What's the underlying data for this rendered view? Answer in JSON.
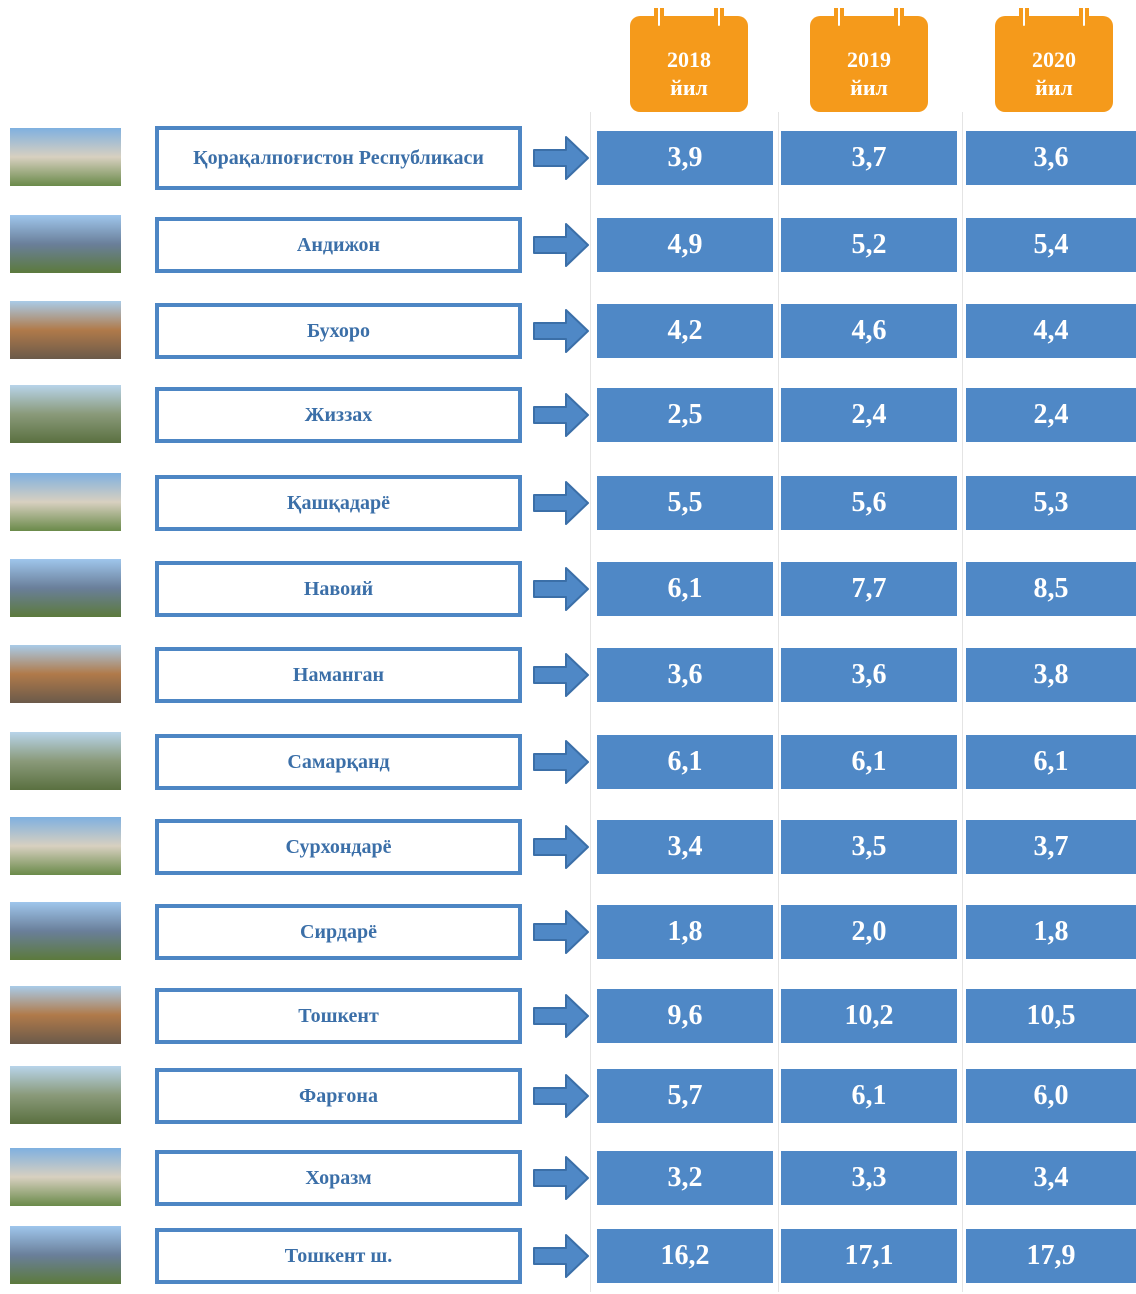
{
  "years": [
    {
      "year": "2018",
      "unit": "йил"
    },
    {
      "year": "2019",
      "unit": "йил"
    },
    {
      "year": "2020",
      "unit": "йил"
    }
  ],
  "rows": [
    {
      "region": "Қорақалпоғистон Республикаси",
      "values": [
        "3,9",
        "3,7",
        "3,6"
      ]
    },
    {
      "region": "Андижон",
      "values": [
        "4,9",
        "5,2",
        "5,4"
      ]
    },
    {
      "region": "Бухоро",
      "values": [
        "4,2",
        "4,6",
        "4,4"
      ]
    },
    {
      "region": "Жиззах",
      "values": [
        "2,5",
        "2,4",
        "2,4"
      ]
    },
    {
      "region": "Қашқадарё",
      "values": [
        "5,5",
        "5,6",
        "5,3"
      ]
    },
    {
      "region": "Навоий",
      "values": [
        "6,1",
        "7,7",
        "8,5"
      ]
    },
    {
      "region": "Наманган",
      "values": [
        "3,6",
        "3,6",
        "3,8"
      ]
    },
    {
      "region": "Самарқанд",
      "values": [
        "6,1",
        "6,1",
        "6,1"
      ]
    },
    {
      "region": "Сурхондарё",
      "values": [
        "3,4",
        "3,5",
        "3,7"
      ]
    },
    {
      "region": "Сирдарё",
      "values": [
        "1,8",
        "2,0",
        "1,8"
      ]
    },
    {
      "region": "Тошкент",
      "values": [
        "9,6",
        "10,2",
        "10,5"
      ]
    },
    {
      "region": "Фарғона",
      "values": [
        "5,7",
        "6,1",
        "6,0"
      ]
    },
    {
      "region": "Хоразм",
      "values": [
        "3,2",
        "3,3",
        "3,4"
      ]
    },
    {
      "region": "Тошкент ш.",
      "values": [
        "16,2",
        "17,1",
        "17,9"
      ]
    }
  ]
}
